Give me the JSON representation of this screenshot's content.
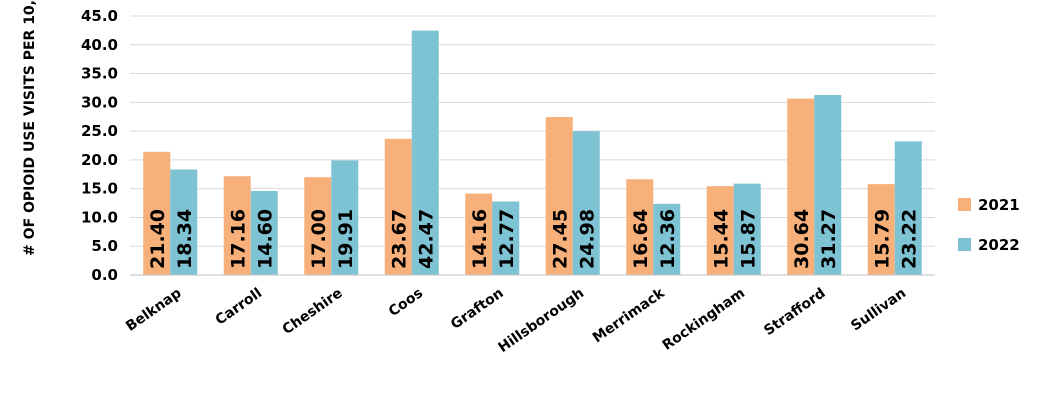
{
  "chart_data": {
    "type": "bar",
    "title": "",
    "xlabel": "",
    "ylabel": "# OF OPIOID USE VISITS PER 10,",
    "ylim": [
      0,
      45
    ],
    "yticks": [
      "0.0",
      "5.0",
      "10.0",
      "15.0",
      "20.0",
      "25.0",
      "30.0",
      "35.0",
      "40.0",
      "45.0"
    ],
    "grid": true,
    "legend_position": "right",
    "categories": [
      "Belknap",
      "Carroll",
      "Cheshire",
      "Coos",
      "Grafton",
      "Hillsborough",
      "Merrimack",
      "Rockingham",
      "Strafford",
      "Sullivan"
    ],
    "series": [
      {
        "name": "2021",
        "color": "#F8B07A",
        "values": [
          21.4,
          17.16,
          17.0,
          23.67,
          14.16,
          27.45,
          16.64,
          15.44,
          30.64,
          15.79
        ],
        "labels": [
          "21.40",
          "17.16",
          "17.00",
          "23.67",
          "14.16",
          "27.45",
          "16.64",
          "15.44",
          "30.64",
          "15.79"
        ]
      },
      {
        "name": "2022",
        "color": "#7EC3D4",
        "values": [
          18.34,
          14.6,
          19.91,
          42.47,
          12.77,
          24.98,
          12.36,
          15.87,
          31.27,
          23.22
        ],
        "labels": [
          "18.34",
          "14.60",
          "19.91",
          "42.47",
          "12.77",
          "24.98",
          "12.36",
          "15.87",
          "31.27",
          "23.22"
        ]
      }
    ]
  }
}
